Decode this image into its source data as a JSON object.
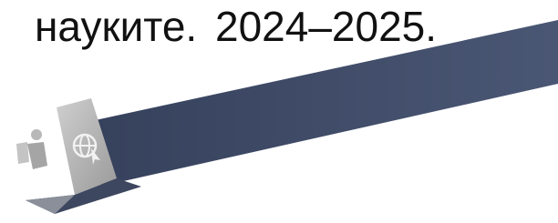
{
  "text": {
    "word": "науките.",
    "years": "2024–2025."
  }
}
